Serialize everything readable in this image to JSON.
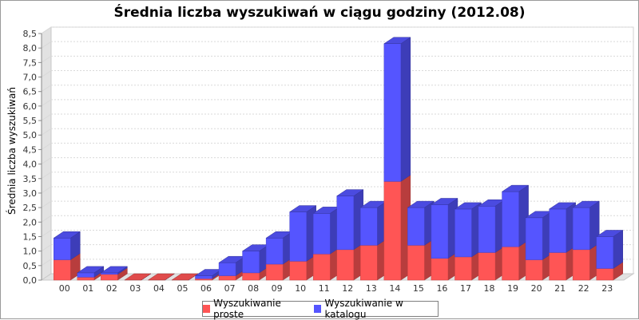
{
  "chart_data": {
    "type": "bar",
    "stacked": true,
    "title": "Średnia liczba wyszukiwań w ciągu godziny (2012.08)",
    "xlabel": "",
    "ylabel": "Średnia liczba wyszukiwań",
    "ylim": [
      0,
      8.5
    ],
    "ytick_step": 0.5,
    "grid": true,
    "legend_position": "bottom",
    "categories": [
      "00",
      "01",
      "02",
      "03",
      "04",
      "05",
      "06",
      "07",
      "08",
      "09",
      "10",
      "11",
      "12",
      "13",
      "14",
      "15",
      "16",
      "17",
      "18",
      "19",
      "20",
      "21",
      "22",
      "23"
    ],
    "yticks": [
      "0,0",
      "0,5",
      "1,0",
      "1,5",
      "2,0",
      "2,5",
      "3,0",
      "3,5",
      "4,0",
      "4,5",
      "5,0",
      "5,5",
      "6,0",
      "6,5",
      "7,0",
      "7,5",
      "8,0",
      "8,5"
    ],
    "series": [
      {
        "name": "Wyszukiwanie proste",
        "color": "#ff5555",
        "values": [
          0.7,
          0.1,
          0.2,
          0.0,
          0.0,
          0.0,
          0.05,
          0.15,
          0.25,
          0.55,
          0.65,
          0.9,
          1.05,
          1.2,
          3.4,
          1.2,
          0.75,
          0.8,
          0.95,
          1.15,
          0.7,
          0.95,
          1.05,
          0.4
        ]
      },
      {
        "name": "Wyszukiwanie w katalogu",
        "color": "#5555ff",
        "values": [
          0.75,
          0.15,
          0.05,
          0.0,
          0.0,
          0.0,
          0.1,
          0.45,
          0.75,
          0.9,
          1.7,
          1.4,
          1.85,
          1.3,
          4.75,
          1.3,
          1.85,
          1.65,
          1.6,
          1.9,
          1.45,
          1.5,
          1.45,
          1.1
        ]
      }
    ]
  }
}
